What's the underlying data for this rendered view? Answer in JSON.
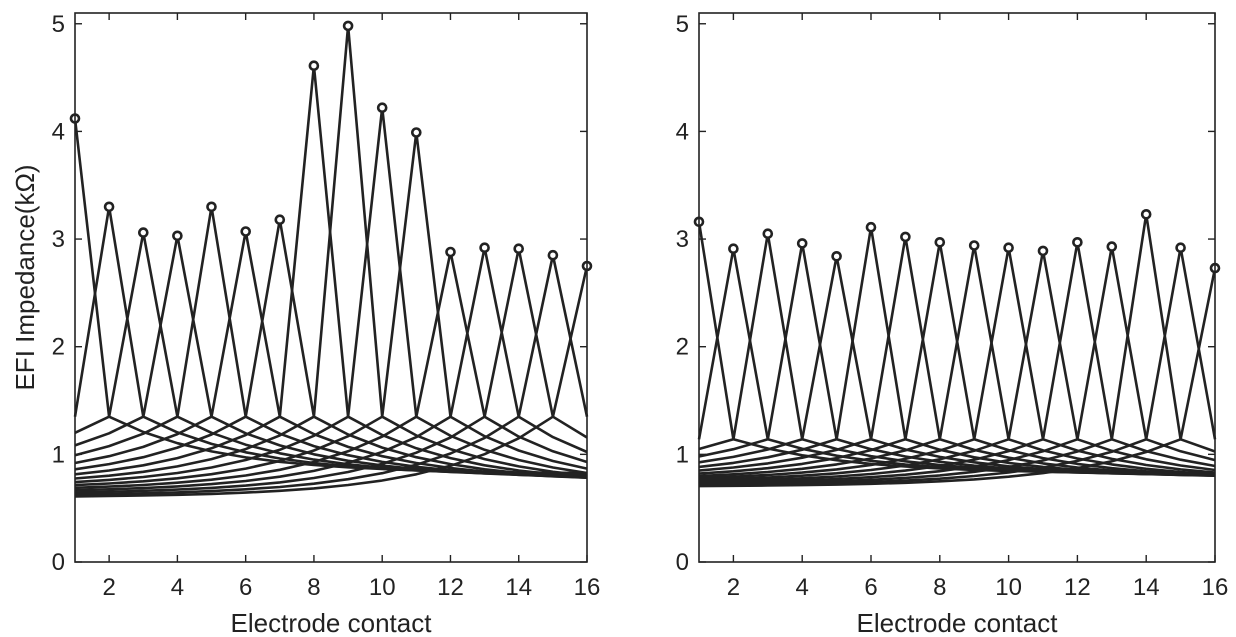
{
  "chart_data": [
    {
      "type": "line",
      "title": "",
      "xlabel": "Electrode contact",
      "ylabel": "EFI Impedance(kΩ)",
      "xlim": [
        1,
        16
      ],
      "ylim": [
        0,
        5.1
      ],
      "x_ticks": [
        2,
        4,
        6,
        8,
        10,
        12,
        14,
        16
      ],
      "y_ticks": [
        0,
        1,
        2,
        3,
        4,
        5
      ],
      "grid": false,
      "markers": "open circle at each peak (stimulating contact)",
      "peaks": {
        "x": [
          1,
          2,
          3,
          4,
          5,
          6,
          7,
          8,
          9,
          10,
          11,
          12,
          13,
          14,
          15,
          16
        ],
        "y": [
          4.12,
          3.3,
          3.06,
          3.03,
          3.3,
          3.07,
          3.18,
          4.61,
          4.98,
          4.22,
          3.99,
          2.88,
          2.92,
          2.91,
          2.85,
          2.75
        ]
      },
      "series_approx": {
        "description": "16 curves (one per stimulating contact); each curve peaks at its own contact and decays toward the far contacts",
        "near_neighbor_value": 1.35,
        "far_value_low": 0.6,
        "far_value_high": 0.82
      }
    },
    {
      "type": "line",
      "title": "",
      "xlabel": "Electrode contact",
      "ylabel": "",
      "xlim": [
        1,
        16
      ],
      "ylim": [
        0,
        5.1
      ],
      "x_ticks": [
        2,
        4,
        6,
        8,
        10,
        12,
        14,
        16
      ],
      "y_ticks": [
        0,
        1,
        2,
        3,
        4,
        5
      ],
      "grid": false,
      "markers": "open circle at each peak (stimulating contact)",
      "peaks": {
        "x": [
          1,
          2,
          3,
          4,
          5,
          6,
          7,
          8,
          9,
          10,
          11,
          12,
          13,
          14,
          15,
          16
        ],
        "y": [
          3.16,
          2.91,
          3.05,
          2.96,
          2.84,
          3.11,
          3.02,
          2.97,
          2.94,
          2.92,
          2.89,
          2.97,
          2.93,
          3.23,
          2.92,
          2.73
        ]
      },
      "series_approx": {
        "description": "16 curves (one per stimulating contact); each curve peaks at its own contact and decays toward the far contacts",
        "near_neighbor_value": 1.14,
        "far_value_low": 0.7,
        "far_value_high": 0.82
      }
    }
  ]
}
